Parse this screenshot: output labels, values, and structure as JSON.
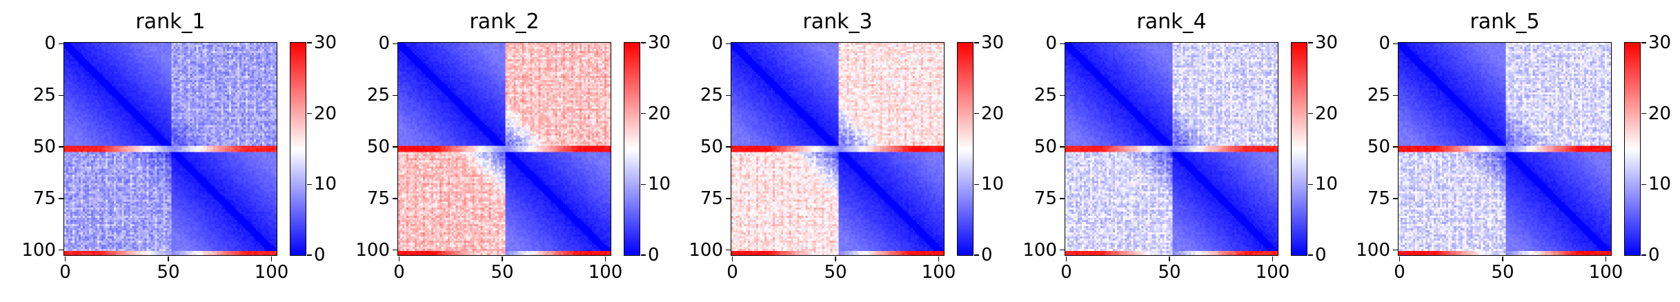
{
  "figure": {
    "colormap": [
      "#0000ff",
      "#ffffff",
      "#ff0000"
    ],
    "colorbar_ticks": [
      0,
      10,
      20,
      30
    ],
    "colorbar_range": [
      0,
      30
    ]
  },
  "chart_data": [
    {
      "type": "heatmap",
      "title": "rank_1",
      "matrix_size": 103,
      "x_ticks": [
        0,
        50,
        100
      ],
      "y_ticks": [
        0,
        25,
        50,
        75,
        100
      ],
      "vmin": 0,
      "vmax": 30,
      "colorbar_ticks": [
        0,
        10,
        20,
        30
      ],
      "block_boundary": 52,
      "red_band_rows": [
        50,
        51,
        52,
        101,
        102
      ],
      "mean_values": {
        "within_block": 4,
        "off_block": 9,
        "band": 28
      }
    },
    {
      "type": "heatmap",
      "title": "rank_2",
      "matrix_size": 103,
      "x_ticks": [
        0,
        50,
        100
      ],
      "y_ticks": [
        0,
        25,
        50,
        75,
        100
      ],
      "vmin": 0,
      "vmax": 30,
      "colorbar_ticks": [
        0,
        10,
        20,
        30
      ],
      "block_boundary": 52,
      "red_band_rows": [
        50,
        51,
        52,
        101,
        102
      ],
      "mean_values": {
        "within_block": 4,
        "off_block": 18,
        "band": 29
      }
    },
    {
      "type": "heatmap",
      "title": "rank_3",
      "matrix_size": 103,
      "x_ticks": [
        0,
        50,
        100
      ],
      "y_ticks": [
        0,
        25,
        50,
        75,
        100
      ],
      "vmin": 0,
      "vmax": 30,
      "colorbar_ticks": [
        0,
        10,
        20,
        30
      ],
      "block_boundary": 52,
      "red_band_rows": [
        50,
        51,
        52,
        101,
        102
      ],
      "mean_values": {
        "within_block": 4,
        "off_block": 16,
        "band": 29
      }
    },
    {
      "type": "heatmap",
      "title": "rank_4",
      "matrix_size": 103,
      "x_ticks": [
        0,
        50,
        100
      ],
      "y_ticks": [
        0,
        25,
        50,
        75,
        100
      ],
      "vmin": 0,
      "vmax": 30,
      "colorbar_ticks": [
        0,
        10,
        20,
        30
      ],
      "block_boundary": 52,
      "red_band_rows": [
        50,
        51,
        52,
        101,
        102
      ],
      "mean_values": {
        "within_block": 4,
        "off_block": 12,
        "band": 28
      }
    },
    {
      "type": "heatmap",
      "title": "rank_5",
      "matrix_size": 103,
      "x_ticks": [
        0,
        50,
        100
      ],
      "y_ticks": [
        0,
        25,
        50,
        75,
        100
      ],
      "vmin": 0,
      "vmax": 30,
      "colorbar_ticks": [
        0,
        10,
        20,
        30
      ],
      "block_boundary": 52,
      "red_band_rows": [
        50,
        51,
        52,
        101,
        102
      ],
      "mean_values": {
        "within_block": 4,
        "off_block": 12,
        "band": 29
      }
    }
  ]
}
